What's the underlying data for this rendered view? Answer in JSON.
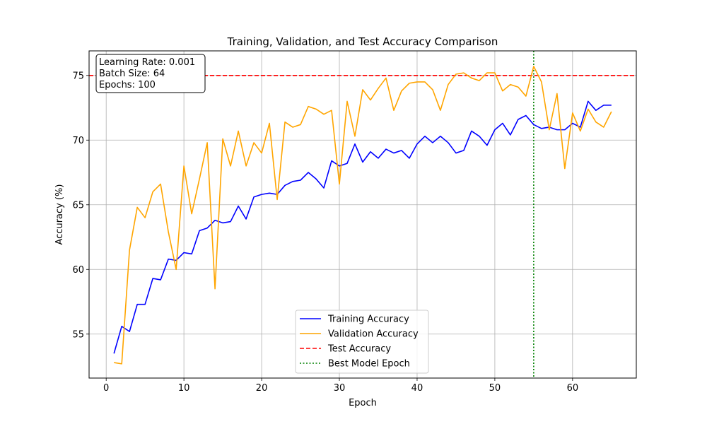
{
  "chart_data": {
    "type": "line",
    "title": "Training, Validation, and Test Accuracy Comparison",
    "xlabel": "Epoch",
    "ylabel": "Accuracy (%)",
    "xlim": [
      -2.2,
      68.2
    ],
    "ylim": [
      51.6,
      76.9
    ],
    "xticks": [
      0,
      10,
      20,
      30,
      40,
      50,
      60
    ],
    "yticks": [
      55,
      60,
      65,
      70,
      75
    ],
    "grid": true,
    "legend_position": "bottom-center",
    "annotation": {
      "lines": [
        "Learning Rate: 0.001",
        "Batch Size: 64",
        "Epochs: 100"
      ],
      "position": "top-left"
    },
    "series": [
      {
        "name": "Training Accuracy",
        "color": "#0000ff",
        "style": "solid",
        "x": [
          1,
          2,
          3,
          4,
          5,
          6,
          7,
          8,
          9,
          10,
          11,
          12,
          13,
          14,
          15,
          16,
          17,
          18,
          19,
          20,
          21,
          22,
          23,
          24,
          25,
          26,
          27,
          28,
          29,
          30,
          31,
          32,
          33,
          34,
          35,
          36,
          37,
          38,
          39,
          40,
          41,
          42,
          43,
          44,
          45,
          46,
          47,
          48,
          49,
          50,
          51,
          52,
          53,
          54,
          55,
          56,
          57,
          58,
          59,
          60,
          61,
          62,
          63,
          64,
          65
        ],
        "values": [
          53.5,
          55.6,
          55.2,
          57.3,
          57.3,
          59.3,
          59.2,
          60.8,
          60.7,
          61.3,
          61.2,
          63.0,
          63.2,
          63.8,
          63.6,
          63.7,
          64.9,
          63.9,
          65.6,
          65.8,
          65.9,
          65.8,
          66.5,
          66.8,
          66.9,
          67.5,
          67.0,
          66.3,
          68.4,
          68.0,
          68.2,
          69.7,
          68.3,
          69.1,
          68.6,
          69.3,
          69.0,
          69.2,
          68.6,
          69.7,
          70.3,
          69.8,
          70.3,
          69.8,
          69.0,
          69.2,
          70.7,
          70.3,
          69.6,
          70.8,
          71.3,
          70.4,
          71.6,
          71.9,
          71.2,
          70.9,
          71.0,
          70.8,
          70.8,
          71.3,
          71.0,
          73.0,
          72.3,
          72.7,
          72.7
        ]
      },
      {
        "name": "Validation Accuracy",
        "color": "#ffa500",
        "style": "solid",
        "x": [
          1,
          2,
          3,
          4,
          5,
          6,
          7,
          8,
          9,
          10,
          11,
          12,
          13,
          14,
          15,
          16,
          17,
          18,
          19,
          20,
          21,
          22,
          23,
          24,
          25,
          26,
          27,
          28,
          29,
          30,
          31,
          32,
          33,
          34,
          35,
          36,
          37,
          38,
          39,
          40,
          41,
          42,
          43,
          44,
          45,
          46,
          47,
          48,
          49,
          50,
          51,
          52,
          53,
          54,
          55,
          56,
          57,
          58,
          59,
          60,
          61,
          62,
          63,
          64,
          65
        ],
        "values": [
          52.8,
          52.7,
          61.5,
          64.8,
          64.0,
          66.0,
          66.6,
          62.9,
          60.0,
          68.0,
          64.3,
          67.0,
          69.8,
          58.5,
          70.1,
          68.0,
          70.7,
          68.0,
          69.8,
          69.0,
          71.3,
          65.4,
          71.4,
          71.0,
          71.2,
          72.6,
          72.4,
          72.0,
          72.3,
          66.6,
          73.0,
          70.3,
          73.9,
          73.1,
          74.0,
          74.8,
          72.3,
          73.8,
          74.4,
          74.5,
          74.5,
          73.9,
          72.3,
          74.3,
          75.1,
          75.2,
          74.8,
          74.6,
          75.2,
          75.2,
          73.8,
          74.3,
          74.1,
          73.4,
          75.7,
          74.5,
          70.8,
          73.6,
          67.8,
          72.1,
          70.7,
          72.4,
          71.4,
          71.0,
          72.2
        ]
      }
    ],
    "reference_lines": [
      {
        "name": "Test Accuracy",
        "orientation": "horizontal",
        "value": 75,
        "color": "#ff0000",
        "style": "dashed"
      },
      {
        "name": "Best Model Epoch",
        "orientation": "vertical",
        "value": 55,
        "color": "#008000",
        "style": "dotted"
      }
    ]
  }
}
